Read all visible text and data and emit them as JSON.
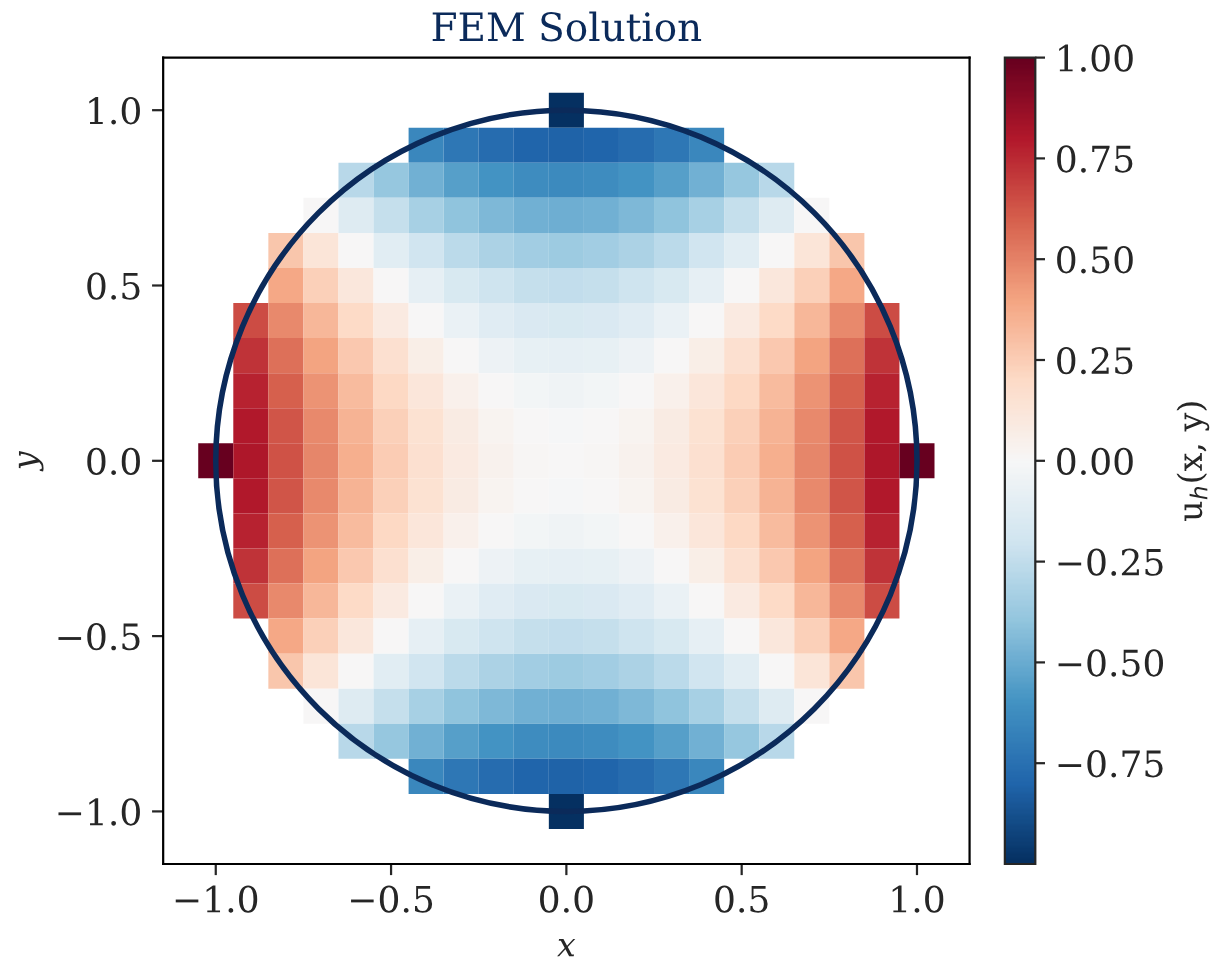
{
  "chart_data": {
    "type": "heatmap",
    "title": "FEM Solution",
    "xlabel": "x",
    "ylabel": "y",
    "clabel": "u$_{h}$(x, y)",
    "x": [
      -1.0,
      -0.9,
      -0.8,
      -0.7,
      -0.6,
      -0.5,
      -0.4,
      -0.3,
      -0.2,
      -0.1,
      0.0,
      0.1,
      0.2,
      0.3,
      0.4,
      0.5,
      0.6,
      0.7,
      0.8,
      0.9,
      1.0
    ],
    "y": [
      1.0,
      0.9,
      0.8,
      0.7,
      0.6,
      0.5,
      0.4,
      0.3,
      0.2,
      0.1,
      0.0,
      -0.1,
      -0.2,
      -0.3,
      -0.4,
      -0.5,
      -0.6,
      -0.7,
      -0.8,
      -0.9,
      -1.0
    ],
    "cells": [
      [
        null,
        null,
        null,
        null,
        null,
        null,
        null,
        null,
        null,
        null,
        -1.0,
        null,
        null,
        null,
        null,
        null,
        null,
        null,
        null,
        null,
        null
      ],
      [
        null,
        null,
        null,
        null,
        null,
        null,
        -0.65,
        -0.72,
        -0.77,
        -0.8,
        -0.81,
        -0.8,
        -0.77,
        -0.72,
        -0.65,
        null,
        null,
        null,
        null,
        null,
        null
      ],
      [
        null,
        null,
        null,
        null,
        -0.28,
        -0.39,
        -0.48,
        -0.55,
        -0.6,
        -0.63,
        -0.64,
        -0.63,
        -0.6,
        -0.55,
        -0.48,
        -0.39,
        -0.28,
        null,
        null,
        null,
        null
      ],
      [
        null,
        null,
        null,
        0.0,
        -0.13,
        -0.24,
        -0.33,
        -0.4,
        -0.45,
        -0.48,
        -0.49,
        -0.48,
        -0.45,
        -0.4,
        -0.33,
        -0.24,
        -0.13,
        0.0,
        null,
        null,
        null
      ],
      [
        null,
        null,
        0.28,
        0.13,
        0.0,
        -0.11,
        -0.2,
        -0.27,
        -0.32,
        -0.35,
        -0.36,
        -0.35,
        -0.32,
        -0.27,
        -0.2,
        -0.11,
        0.0,
        0.13,
        0.28,
        null,
        null
      ],
      [
        null,
        null,
        0.39,
        0.24,
        0.11,
        0.0,
        -0.09,
        -0.16,
        -0.21,
        -0.24,
        -0.25,
        -0.24,
        -0.21,
        -0.16,
        -0.09,
        0.0,
        0.11,
        0.24,
        0.39,
        null,
        null
      ],
      [
        null,
        0.65,
        0.48,
        0.33,
        0.2,
        0.09,
        0.0,
        -0.07,
        -0.12,
        -0.15,
        -0.16,
        -0.15,
        -0.12,
        -0.07,
        0.0,
        0.09,
        0.2,
        0.33,
        0.48,
        0.65,
        null
      ],
      [
        null,
        0.72,
        0.55,
        0.4,
        0.27,
        0.16,
        0.07,
        0.0,
        -0.05,
        -0.08,
        -0.09,
        -0.08,
        -0.05,
        0.0,
        0.07,
        0.16,
        0.27,
        0.4,
        0.55,
        0.72,
        null
      ],
      [
        null,
        0.77,
        0.6,
        0.45,
        0.32,
        0.21,
        0.12,
        0.05,
        0.0,
        -0.03,
        -0.04,
        -0.03,
        0.0,
        0.05,
        0.12,
        0.21,
        0.32,
        0.45,
        0.6,
        0.77,
        null
      ],
      [
        null,
        0.8,
        0.63,
        0.48,
        0.35,
        0.24,
        0.15,
        0.08,
        0.03,
        0.0,
        -0.01,
        0.0,
        0.03,
        0.08,
        0.15,
        0.24,
        0.35,
        0.48,
        0.63,
        0.8,
        null
      ],
      [
        1.0,
        0.81,
        0.64,
        0.49,
        0.36,
        0.25,
        0.16,
        0.09,
        0.04,
        0.01,
        0.0,
        0.01,
        0.04,
        0.09,
        0.16,
        0.25,
        0.36,
        0.49,
        0.64,
        0.81,
        1.0
      ],
      [
        null,
        0.8,
        0.63,
        0.48,
        0.35,
        0.24,
        0.15,
        0.08,
        0.03,
        0.0,
        -0.01,
        0.0,
        0.03,
        0.08,
        0.15,
        0.24,
        0.35,
        0.48,
        0.63,
        0.8,
        null
      ],
      [
        null,
        0.77,
        0.6,
        0.45,
        0.32,
        0.21,
        0.12,
        0.05,
        0.0,
        -0.03,
        -0.04,
        -0.03,
        0.0,
        0.05,
        0.12,
        0.21,
        0.32,
        0.45,
        0.6,
        0.77,
        null
      ],
      [
        null,
        0.72,
        0.55,
        0.4,
        0.27,
        0.16,
        0.07,
        0.0,
        -0.05,
        -0.08,
        -0.09,
        -0.08,
        -0.05,
        0.0,
        0.07,
        0.16,
        0.27,
        0.4,
        0.55,
        0.72,
        null
      ],
      [
        null,
        0.65,
        0.48,
        0.33,
        0.2,
        0.09,
        0.0,
        -0.07,
        -0.12,
        -0.15,
        -0.16,
        -0.15,
        -0.12,
        -0.07,
        0.0,
        0.09,
        0.2,
        0.33,
        0.48,
        0.65,
        null
      ],
      [
        null,
        null,
        0.39,
        0.24,
        0.11,
        0.0,
        -0.09,
        -0.16,
        -0.21,
        -0.24,
        -0.25,
        -0.24,
        -0.21,
        -0.16,
        -0.09,
        0.0,
        0.11,
        0.24,
        0.39,
        null,
        null
      ],
      [
        null,
        null,
        0.28,
        0.13,
        0.0,
        -0.11,
        -0.2,
        -0.27,
        -0.32,
        -0.35,
        -0.36,
        -0.35,
        -0.32,
        -0.27,
        -0.2,
        -0.11,
        0.0,
        0.13,
        0.28,
        null,
        null
      ],
      [
        null,
        null,
        null,
        0.0,
        -0.13,
        -0.24,
        -0.33,
        -0.4,
        -0.45,
        -0.48,
        -0.49,
        -0.48,
        -0.45,
        -0.4,
        -0.33,
        -0.24,
        -0.13,
        0.0,
        null,
        null,
        null
      ],
      [
        null,
        null,
        null,
        null,
        -0.28,
        -0.39,
        -0.48,
        -0.55,
        -0.6,
        -0.63,
        -0.64,
        -0.63,
        -0.6,
        -0.55,
        -0.48,
        -0.39,
        -0.28,
        null,
        null,
        null,
        null
      ],
      [
        null,
        null,
        null,
        null,
        null,
        null,
        -0.65,
        -0.72,
        -0.77,
        -0.8,
        -0.81,
        -0.8,
        -0.77,
        -0.72,
        -0.65,
        null,
        null,
        null,
        null,
        null,
        null
      ],
      [
        null,
        null,
        null,
        null,
        null,
        null,
        null,
        null,
        null,
        null,
        -1.0,
        null,
        null,
        null,
        null,
        null,
        null,
        null,
        null,
        null,
        null
      ]
    ],
    "xlim": [
      -1.15,
      1.15
    ],
    "ylim": [
      -1.15,
      1.15
    ],
    "xticks": [
      {
        "value": -1.0,
        "label": "−1.0"
      },
      {
        "value": -0.5,
        "label": "−0.5"
      },
      {
        "value": 0.0,
        "label": "0.0"
      },
      {
        "value": 0.5,
        "label": "0.5"
      },
      {
        "value": 1.0,
        "label": "1.0"
      }
    ],
    "yticks": [
      {
        "value": -1.0,
        "label": "−1.0"
      },
      {
        "value": -0.5,
        "label": "−0.5"
      },
      {
        "value": 0.0,
        "label": "0.0"
      },
      {
        "value": 0.5,
        "label": "0.5"
      },
      {
        "value": 1.0,
        "label": "1.0"
      }
    ],
    "clim": [
      -1.0,
      1.0
    ],
    "cticks": [
      {
        "value": -0.75,
        "label": "−0.75"
      },
      {
        "value": -0.5,
        "label": "−0.50"
      },
      {
        "value": -0.25,
        "label": "−0.25"
      },
      {
        "value": 0.0,
        "label": "0.00"
      },
      {
        "value": 0.25,
        "label": "0.25"
      },
      {
        "value": 0.5,
        "label": "0.50"
      },
      {
        "value": 0.75,
        "label": "0.75"
      },
      {
        "value": 1.0,
        "label": "1.00"
      }
    ]
  }
}
